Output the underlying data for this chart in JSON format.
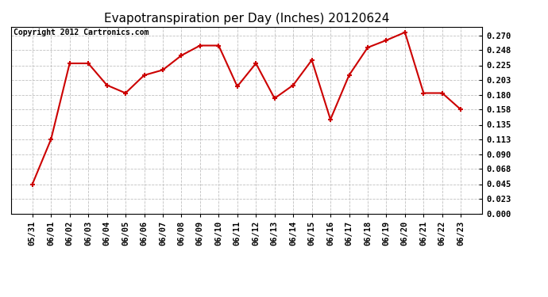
{
  "title": "Evapotranspiration per Day (Inches) 20120624",
  "copyright": "Copyright 2012 Cartronics.com",
  "dates": [
    "05/31",
    "06/01",
    "06/02",
    "06/03",
    "06/04",
    "06/05",
    "06/06",
    "06/07",
    "06/08",
    "06/09",
    "06/10",
    "06/11",
    "06/12",
    "06/13",
    "06/14",
    "06/15",
    "06/16",
    "06/17",
    "06/18",
    "06/19",
    "06/20",
    "06/21",
    "06/22",
    "06/23"
  ],
  "values": [
    0.045,
    0.113,
    0.228,
    0.228,
    0.195,
    0.183,
    0.21,
    0.218,
    0.24,
    0.255,
    0.255,
    0.193,
    0.228,
    0.175,
    0.195,
    0.233,
    0.143,
    0.21,
    0.252,
    0.263,
    0.275,
    0.183,
    0.183,
    0.158
  ],
  "ylim": [
    0.0,
    0.2835
  ],
  "yticks": [
    0.0,
    0.023,
    0.045,
    0.068,
    0.09,
    0.113,
    0.135,
    0.158,
    0.18,
    0.203,
    0.225,
    0.248,
    0.27
  ],
  "line_color": "#cc0000",
  "marker_color": "#cc0000",
  "bg_color": "#ffffff",
  "grid_color": "#c0c0c0",
  "title_fontsize": 11,
  "copyright_fontsize": 7,
  "tick_fontsize": 7.5,
  "ytick_fontsize": 7.5
}
